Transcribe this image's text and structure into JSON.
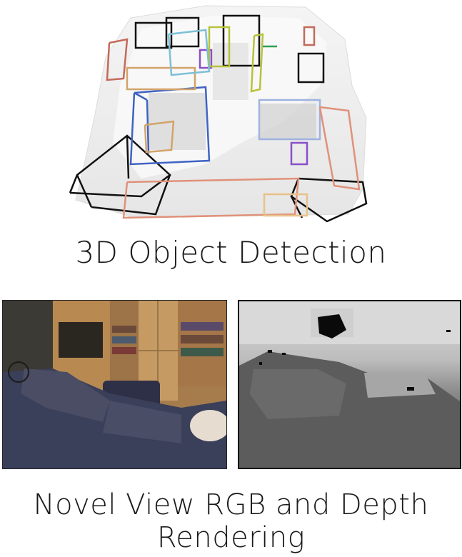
{
  "captions": {
    "top": "3D Object Detection",
    "bottom_line1": "Novel View RGB and Depth",
    "bottom_line2": "Rendering"
  },
  "panels": {
    "point_cloud": {
      "box_colors": [
        "#111111",
        "#3f63c4",
        "#e0917a",
        "#d2a36a",
        "#8a4fc9",
        "#b8c23a",
        "#7cc0d6",
        "#c46a5a",
        "#2f9e55"
      ]
    },
    "rgb_view": {
      "colors": [
        "#3a3f5a",
        "#b08a5a",
        "#d9d2c4"
      ]
    },
    "depth_view": {
      "colors": [
        "#d9d9d9",
        "#5c5c5c",
        "#0a0a0a"
      ]
    }
  }
}
